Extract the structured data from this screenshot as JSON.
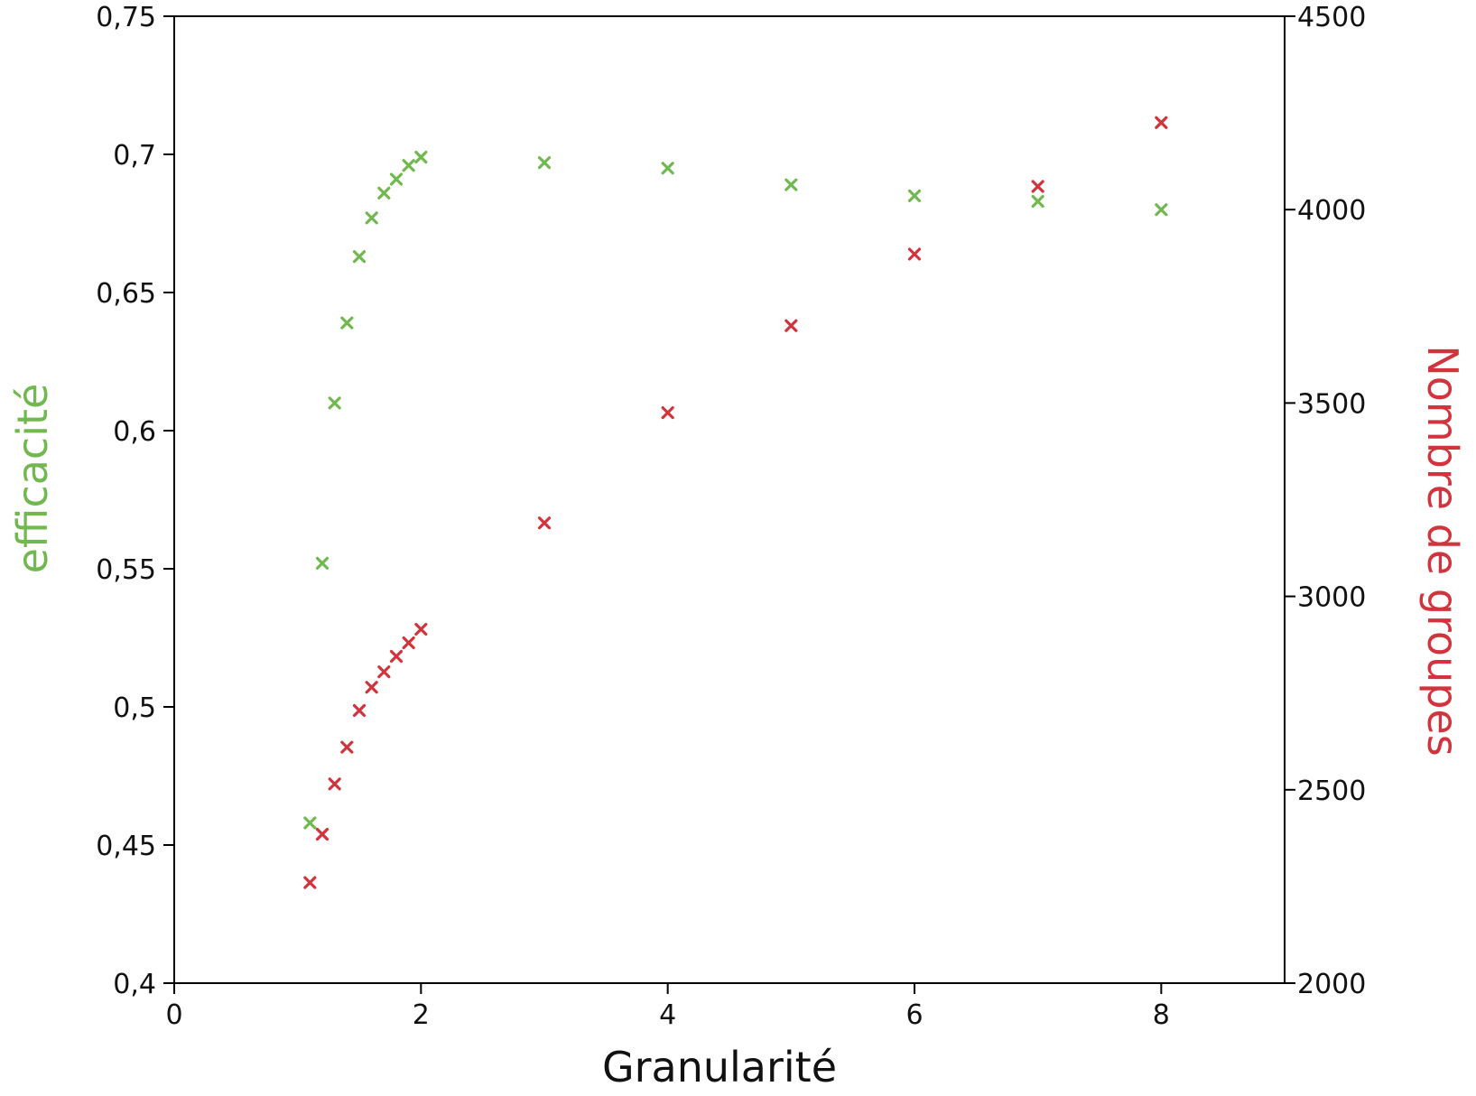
{
  "chart_data": {
    "type": "scatter",
    "xlabel": "Granularité",
    "ylabel_left": "efficacité",
    "ylabel_right": "Nombre de groupes",
    "xlim": [
      0,
      9
    ],
    "ylim_left": [
      0.4,
      0.75
    ],
    "ylim_right": [
      2000,
      4500
    ],
    "x_ticks": [
      0,
      2,
      4,
      6,
      8
    ],
    "x_tick_labels": [
      "0",
      "2",
      "4",
      "6",
      "8"
    ],
    "y_left_ticks": [
      0.4,
      0.45,
      0.5,
      0.55,
      0.6,
      0.65,
      0.7,
      0.75
    ],
    "y_left_tick_labels": [
      "0,4",
      "0,45",
      "0,5",
      "0,55",
      "0,6",
      "0,65",
      "0,7",
      "0,75"
    ],
    "y_right_ticks": [
      2000,
      2500,
      3000,
      3500,
      4000,
      4500
    ],
    "y_right_tick_labels": [
      "2000",
      "2500",
      "3000",
      "3500",
      "4000",
      "4500"
    ],
    "grid": false,
    "marker": "x",
    "series": [
      {
        "name": "efficacité",
        "axis": "left",
        "color": "#72b850",
        "x": [
          1.1,
          1.2,
          1.3,
          1.4,
          1.5,
          1.6,
          1.7,
          1.8,
          1.9,
          2.0,
          3,
          4,
          5,
          6,
          7,
          8
        ],
        "y": [
          0.458,
          0.552,
          0.61,
          0.639,
          0.663,
          0.677,
          0.686,
          0.691,
          0.696,
          0.699,
          0.697,
          0.695,
          0.689,
          0.685,
          0.683,
          0.68
        ]
      },
      {
        "name": "Nombre de groupes",
        "axis": "right",
        "color": "#d2343e",
        "x": [
          1.1,
          1.2,
          1.3,
          1.4,
          1.5,
          1.6,
          1.7,
          1.8,
          1.9,
          2.0,
          3,
          4,
          5,
          6,
          7,
          8
        ],
        "y": [
          2260,
          2385,
          2515,
          2610,
          2705,
          2765,
          2805,
          2845,
          2880,
          2915,
          3190,
          3475,
          3700,
          3885,
          4060,
          4225
        ]
      }
    ]
  }
}
